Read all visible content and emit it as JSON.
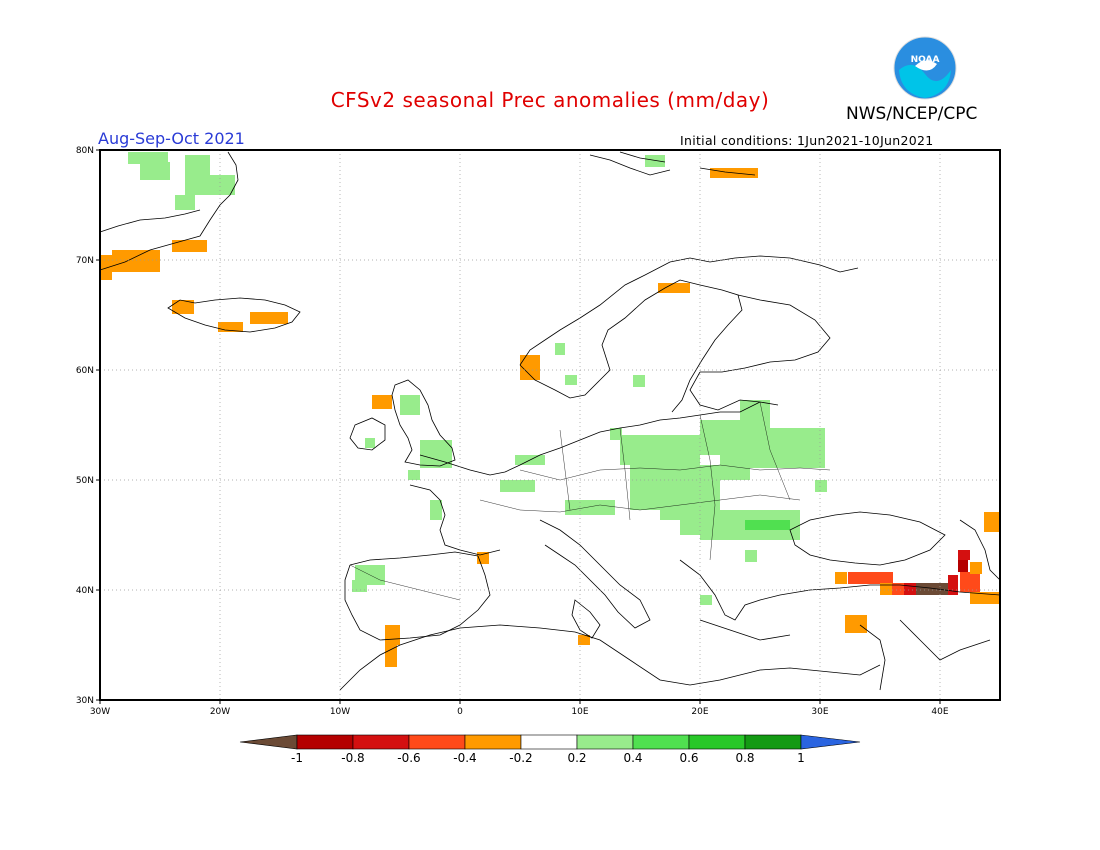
{
  "header": {
    "title": "CFSv2 seasonal Prec anomalies (mm/day)",
    "season": "Aug-Sep-Oct 2021",
    "initial_conditions": "Initial conditions: 1Jun2021-10Jun2021",
    "agency": "NWS/NCEP/CPC",
    "logo_text": "NOAA"
  },
  "map": {
    "lat_labels": [
      "80N",
      "70N",
      "60N",
      "50N",
      "40N",
      "30N"
    ],
    "lon_labels": [
      "30W",
      "20W",
      "10W",
      "0",
      "10E",
      "20E",
      "30E",
      "40E"
    ],
    "extent": {
      "lon_min": -30,
      "lon_max": 45,
      "lat_min": 30,
      "lat_max": 80
    },
    "grid": true
  },
  "colorbar": {
    "labels": [
      "-1",
      "-0.8",
      "-0.6",
      "-0.4",
      "-0.2",
      "0.2",
      "0.4",
      "0.6",
      "0.8",
      "1"
    ],
    "colors": [
      "#6b4a35",
      "#b40000",
      "#d41010",
      "#ff4a1a",
      "#ff9a00",
      "#ffffff",
      "#98ec8c",
      "#50e050",
      "#28c828",
      "#139a13",
      "#2a64e0"
    ]
  }
}
